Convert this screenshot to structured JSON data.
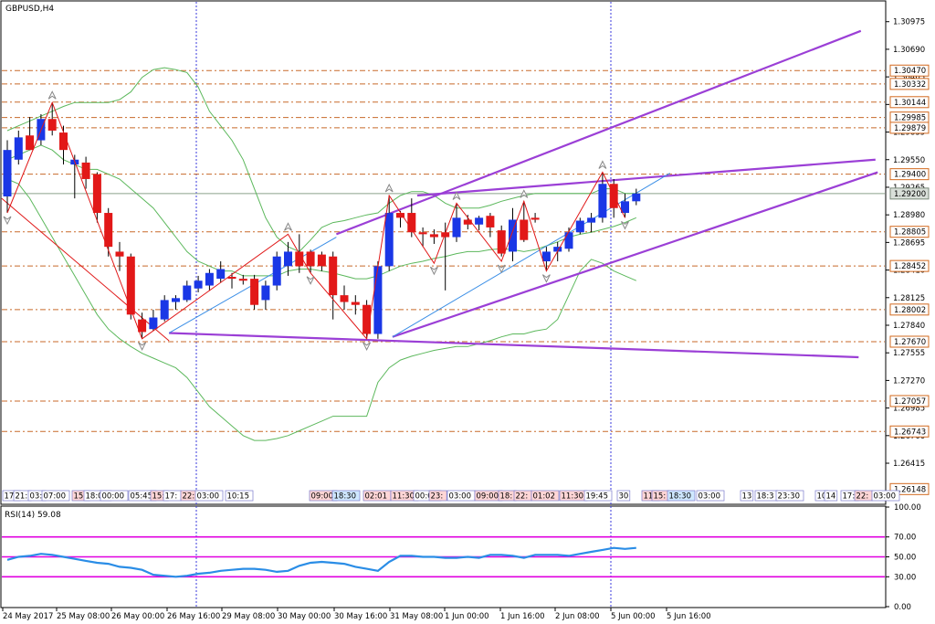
{
  "header": {
    "symbol": "GBPUSD,H4"
  },
  "rsi_header": "RSI(14) 59.08",
  "colors": {
    "bull": "#1a37e6",
    "bear": "#e21818",
    "bollinger": "#5cb85c",
    "channel": "#9b3fd6",
    "zigzag": "#e01818",
    "trend_blue": "#3a8ee6",
    "level_dash": "#c86a2a",
    "level_label_bg": "#d2691e",
    "rsi_line": "#2a8de6",
    "rsi_levels": "#e000e0",
    "vline": "#3a3adc"
  },
  "chart_data": [
    {
      "type": "candlestick",
      "title": "GBPUSD,H4",
      "ylim": [
        1.26,
        1.3118
      ],
      "y_ticks": [
        "1.30975",
        "1.30690",
        "1.30405",
        "1.30120",
        "1.29835",
        "1.29550",
        "1.29265",
        "1.28980",
        "1.28695",
        "1.28410",
        "1.28125",
        "1.27840",
        "1.27555",
        "1.27270",
        "1.26985",
        "1.26700",
        "1.26415"
      ],
      "x_ticks": [
        "24 May 2017",
        "25 May 08:00",
        "26 May 00:00",
        "26 May 16:00",
        "29 May 08:00",
        "30 May 00:00",
        "30 May 16:00",
        "31 May 08:00",
        "1 Jun 00:00",
        "1 Jun 16:00",
        "2 Jun 08:00",
        "5 Jun 00:00",
        "5 Jun 16:00"
      ],
      "candles": [
        {
          "o": 1.2917,
          "h": 1.2975,
          "l": 1.29,
          "c": 1.2965
        },
        {
          "o": 1.2955,
          "h": 1.2985,
          "l": 1.295,
          "c": 1.2978
        },
        {
          "o": 1.298,
          "h": 1.2999,
          "l": 1.2965,
          "c": 1.2965
        },
        {
          "o": 1.2975,
          "h": 1.3002,
          "l": 1.297,
          "c": 1.2997
        },
        {
          "o": 1.2997,
          "h": 1.3014,
          "l": 1.298,
          "c": 1.2985
        },
        {
          "o": 1.2983,
          "h": 1.299,
          "l": 1.295,
          "c": 1.2965
        },
        {
          "o": 1.295,
          "h": 1.296,
          "l": 1.2915,
          "c": 1.2955
        },
        {
          "o": 1.2952,
          "h": 1.2958,
          "l": 1.2925,
          "c": 1.2935
        },
        {
          "o": 1.294,
          "h": 1.2942,
          "l": 1.289,
          "c": 1.29
        },
        {
          "o": 1.29,
          "h": 1.2905,
          "l": 1.2855,
          "c": 1.2865
        },
        {
          "o": 1.286,
          "h": 1.287,
          "l": 1.284,
          "c": 1.2855
        },
        {
          "o": 1.2855,
          "h": 1.2858,
          "l": 1.279,
          "c": 1.2795
        },
        {
          "o": 1.279,
          "h": 1.2797,
          "l": 1.277,
          "c": 1.2777
        },
        {
          "o": 1.278,
          "h": 1.28,
          "l": 1.2778,
          "c": 1.2792
        },
        {
          "o": 1.279,
          "h": 1.2815,
          "l": 1.2788,
          "c": 1.281
        },
        {
          "o": 1.2808,
          "h": 1.2815,
          "l": 1.28,
          "c": 1.2812
        },
        {
          "o": 1.281,
          "h": 1.283,
          "l": 1.2808,
          "c": 1.2825
        },
        {
          "o": 1.2822,
          "h": 1.2835,
          "l": 1.2818,
          "c": 1.283
        },
        {
          "o": 1.2825,
          "h": 1.2842,
          "l": 1.282,
          "c": 1.2838
        },
        {
          "o": 1.2832,
          "h": 1.285,
          "l": 1.2828,
          "c": 1.2842
        },
        {
          "o": 1.2834,
          "h": 1.2838,
          "l": 1.2822,
          "c": 1.2832
        },
        {
          "o": 1.2832,
          "h": 1.2836,
          "l": 1.2826,
          "c": 1.283
        },
        {
          "o": 1.2832,
          "h": 1.2836,
          "l": 1.28,
          "c": 1.2805
        },
        {
          "o": 1.281,
          "h": 1.283,
          "l": 1.28,
          "c": 1.2825
        },
        {
          "o": 1.2825,
          "h": 1.286,
          "l": 1.282,
          "c": 1.2855
        },
        {
          "o": 1.2845,
          "h": 1.287,
          "l": 1.2835,
          "c": 1.286
        },
        {
          "o": 1.286,
          "h": 1.2878,
          "l": 1.2838,
          "c": 1.2845
        },
        {
          "o": 1.286,
          "h": 1.2862,
          "l": 1.2838,
          "c": 1.2845
        },
        {
          "o": 1.2857,
          "h": 1.286,
          "l": 1.284,
          "c": 1.2845
        },
        {
          "o": 1.2855,
          "h": 1.286,
          "l": 1.279,
          "c": 1.2815
        },
        {
          "o": 1.2815,
          "h": 1.2825,
          "l": 1.28,
          "c": 1.2808
        },
        {
          "o": 1.2808,
          "h": 1.2815,
          "l": 1.2795,
          "c": 1.2805
        },
        {
          "o": 1.2805,
          "h": 1.281,
          "l": 1.277,
          "c": 1.2775
        },
        {
          "o": 1.2775,
          "h": 1.285,
          "l": 1.277,
          "c": 1.2845
        },
        {
          "o": 1.2845,
          "h": 1.2918,
          "l": 1.284,
          "c": 1.29
        },
        {
          "o": 1.29,
          "h": 1.2902,
          "l": 1.2885,
          "c": 1.2895
        },
        {
          "o": 1.29,
          "h": 1.2915,
          "l": 1.2875,
          "c": 1.288
        },
        {
          "o": 1.288,
          "h": 1.2885,
          "l": 1.2865,
          "c": 1.2878
        },
        {
          "o": 1.2878,
          "h": 1.2883,
          "l": 1.2868,
          "c": 1.2875
        },
        {
          "o": 1.288,
          "h": 1.289,
          "l": 1.282,
          "c": 1.2875
        },
        {
          "o": 1.2875,
          "h": 1.291,
          "l": 1.287,
          "c": 1.2895
        },
        {
          "o": 1.2893,
          "h": 1.2898,
          "l": 1.2883,
          "c": 1.2888
        },
        {
          "o": 1.2888,
          "h": 1.2897,
          "l": 1.2882,
          "c": 1.2895
        },
        {
          "o": 1.2897,
          "h": 1.29,
          "l": 1.2875,
          "c": 1.2885
        },
        {
          "o": 1.2882,
          "h": 1.2887,
          "l": 1.2855,
          "c": 1.2858
        },
        {
          "o": 1.286,
          "h": 1.2905,
          "l": 1.285,
          "c": 1.2893
        },
        {
          "o": 1.2893,
          "h": 1.2912,
          "l": 1.287,
          "c": 1.2872
        },
        {
          "o": 1.2895,
          "h": 1.29,
          "l": 1.289,
          "c": 1.2893
        },
        {
          "o": 1.285,
          "h": 1.2865,
          "l": 1.284,
          "c": 1.286
        },
        {
          "o": 1.286,
          "h": 1.287,
          "l": 1.285,
          "c": 1.2865
        },
        {
          "o": 1.2863,
          "h": 1.2885,
          "l": 1.286,
          "c": 1.288
        },
        {
          "o": 1.288,
          "h": 1.2895,
          "l": 1.2878,
          "c": 1.2892
        },
        {
          "o": 1.289,
          "h": 1.29,
          "l": 1.288,
          "c": 1.2895
        },
        {
          "o": 1.2895,
          "h": 1.2942,
          "l": 1.289,
          "c": 1.293
        },
        {
          "o": 1.293,
          "h": 1.2935,
          "l": 1.2895,
          "c": 1.2905
        },
        {
          "o": 1.29,
          "h": 1.292,
          "l": 1.2895,
          "c": 1.2912
        },
        {
          "o": 1.2912,
          "h": 1.2925,
          "l": 1.2908,
          "c": 1.292
        }
      ],
      "levels": [
        "1.30470",
        "1.30332",
        "1.30144",
        "1.29985",
        "1.29879",
        "1.29400",
        "1.28805",
        "1.28452",
        "1.28002",
        "1.27670",
        "1.27057",
        "1.26743"
      ],
      "levels_offscale": [
        "1.26148"
      ],
      "current_price": "1.29200",
      "bands": {
        "upper": [
          1.2985,
          1.299,
          1.2995,
          1.3,
          1.3005,
          1.301,
          1.3014,
          1.3014,
          1.3014,
          1.3014,
          1.3017,
          1.3025,
          1.304,
          1.3048,
          1.305,
          1.3048,
          1.3045,
          1.303,
          1.3005,
          1.299,
          1.2975,
          1.2955,
          1.2925,
          1.2895,
          1.2875,
          1.2865,
          1.286,
          1.2872,
          1.2885,
          1.289,
          1.2892,
          1.2895,
          1.2898,
          1.29,
          1.291,
          1.2918,
          1.2922,
          1.2922,
          1.2918,
          1.291,
          1.2905,
          1.2905,
          1.2905,
          1.2908,
          1.2912,
          1.2915,
          1.2918,
          1.292,
          1.292,
          1.292,
          1.292,
          1.292,
          1.292,
          1.2925,
          1.2925,
          1.292,
          1.292
        ],
        "middle": [
          1.2955,
          1.296,
          1.2965,
          1.297,
          1.2965,
          1.2955,
          1.295,
          1.2945,
          1.2945,
          1.294,
          1.2935,
          1.2925,
          1.2915,
          1.2905,
          1.289,
          1.2875,
          1.286,
          1.285,
          1.2845,
          1.284,
          1.284,
          1.2835,
          1.2835,
          1.2835,
          1.2835,
          1.284,
          1.2842,
          1.2842,
          1.284,
          1.2838,
          1.2835,
          1.2832,
          1.2832,
          1.2835,
          1.284,
          1.2845,
          1.2848,
          1.285,
          1.2853,
          1.2855,
          1.2858,
          1.286,
          1.286,
          1.2862,
          1.2863,
          1.2862,
          1.286,
          1.2862,
          1.2866,
          1.287,
          1.2875,
          1.2878,
          1.288,
          1.2883,
          1.2886,
          1.289,
          1.2895
        ],
        "lower": [
          1.2935,
          1.293,
          1.2915,
          1.2895,
          1.2875,
          1.2855,
          1.2835,
          1.2815,
          1.2795,
          1.278,
          1.277,
          1.2762,
          1.2755,
          1.275,
          1.2745,
          1.274,
          1.273,
          1.2715,
          1.27,
          1.269,
          1.268,
          1.267,
          1.2665,
          1.2665,
          1.2667,
          1.267,
          1.2675,
          1.268,
          1.2685,
          1.269,
          1.269,
          1.269,
          1.269,
          1.2725,
          1.274,
          1.2748,
          1.2752,
          1.2755,
          1.2758,
          1.276,
          1.2762,
          1.2762,
          1.2765,
          1.2768,
          1.2772,
          1.2775,
          1.2775,
          1.2778,
          1.278,
          1.279,
          1.2815,
          1.284,
          1.2852,
          1.2848,
          1.284,
          1.2835,
          1.283
        ]
      },
      "zigzag_points": [
        [
          0,
          1.29
        ],
        [
          4,
          1.3014
        ],
        [
          12,
          1.277
        ],
        [
          25,
          1.2878
        ],
        [
          27,
          1.2838
        ],
        [
          32,
          1.277
        ],
        [
          34,
          1.2918
        ],
        [
          38,
          1.2848
        ],
        [
          40,
          1.291
        ],
        [
          44,
          1.285
        ],
        [
          46,
          1.2912
        ],
        [
          48,
          1.284
        ],
        [
          53,
          1.2942
        ],
        [
          55,
          1.2895
        ]
      ],
      "rsi": {
        "name": "RSI(14)",
        "value": 59.08,
        "ylim": [
          0,
          100
        ],
        "y_ticks": [
          "100.00",
          "70.00",
          "50.00",
          "30.00",
          "0.00"
        ],
        "levels": [
          70,
          50,
          30
        ],
        "values": [
          47,
          50,
          51,
          53,
          52,
          50,
          48,
          46,
          44,
          43,
          40,
          39,
          37,
          32,
          31,
          30,
          31,
          33,
          34,
          36,
          37,
          38,
          38,
          37,
          35,
          36,
          41,
          44,
          45,
          44,
          43,
          40,
          38,
          36,
          45,
          51,
          51,
          50,
          50,
          49,
          49,
          50,
          49,
          52,
          52,
          51,
          49,
          52,
          52,
          52,
          51,
          53,
          55,
          57,
          59,
          58,
          59
        ]
      },
      "time_strip": [
        "17:",
        "21:",
        "03:",
        "07:00",
        "15:",
        "18:00",
        "00:00",
        "05:45",
        "15:",
        "17:",
        "22:",
        "03:00",
        "10:15",
        "09:00",
        "18:30",
        "02:01",
        "11:30",
        "00:00",
        "23:",
        "03:00",
        "09:00",
        "18:",
        "22:",
        "01:02",
        "11:30",
        "19:45",
        "30",
        "11:",
        "15:",
        "18:30",
        "03:00",
        "13",
        "18:3",
        "23:30",
        "10",
        "14",
        "17:",
        "22:",
        "03:00"
      ]
    }
  ]
}
